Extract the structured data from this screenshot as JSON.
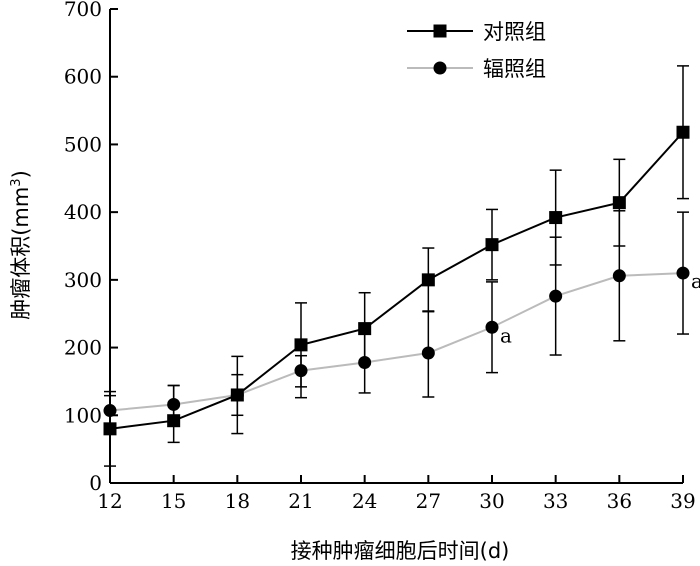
{
  "chart_data": {
    "type": "line",
    "xlabel": "接种肿瘤细胞后时间(d)",
    "ylabel_main": "肿瘤体积(mm",
    "ylabel_sup": "3",
    "ylabel_close": ")",
    "x": [
      12,
      15,
      18,
      21,
      24,
      27,
      30,
      33,
      36,
      39
    ],
    "x_ticks": [
      "12",
      "15",
      "18",
      "21",
      "24",
      "27",
      "30",
      "33",
      "36",
      "39"
    ],
    "ylim": [
      0,
      700
    ],
    "y_ticks": [
      "0",
      "100",
      "200",
      "300",
      "400",
      "500",
      "600",
      "700"
    ],
    "grid": false,
    "legend_position": "top-right",
    "series": [
      {
        "name": "对照组",
        "marker": "square",
        "color": "#000000",
        "values": [
          80,
          92,
          130,
          204,
          228,
          300,
          352,
          392,
          414,
          518
        ],
        "error_upper": [
          55,
          52,
          57,
          62,
          53,
          47,
          52,
          70,
          64,
          98
        ],
        "error_lower": [
          55,
          32,
          57,
          62,
          53,
          47,
          52,
          70,
          64,
          98
        ]
      },
      {
        "name": "辐照组",
        "marker": "circle",
        "color": "#bbbbbb",
        "values": [
          107,
          116,
          130,
          166,
          178,
          192,
          230,
          276,
          306,
          310
        ],
        "error_upper": [
          22,
          28,
          30,
          22,
          45,
          62,
          67,
          87,
          96,
          90
        ],
        "error_lower": [
          22,
          28,
          30,
          40,
          45,
          65,
          67,
          87,
          96,
          90
        ]
      }
    ],
    "annotations": [
      {
        "x": 30,
        "y": 230,
        "text": "a"
      },
      {
        "x": 39,
        "y": 310,
        "text": "a"
      }
    ]
  }
}
